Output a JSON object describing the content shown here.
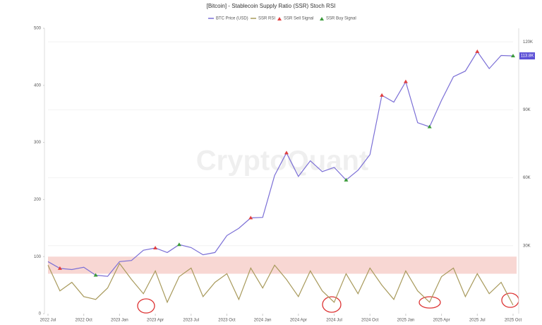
{
  "chart_data": {
    "type": "line",
    "title": "[Bitcoin] - Stablecoin Supply Ratio (SSR) Stoch RSI",
    "watermark": "CryptoQuant",
    "x": [
      "2022-07",
      "2022-08",
      "2022-09",
      "2022-10",
      "2022-11",
      "2022-12",
      "2023-01",
      "2023-02",
      "2023-03",
      "2023-04",
      "2023-05",
      "2023-06",
      "2023-07",
      "2023-08",
      "2023-09",
      "2023-10",
      "2023-11",
      "2023-12",
      "2024-01",
      "2024-02",
      "2024-03",
      "2024-04",
      "2024-05",
      "2024-06",
      "2024-07",
      "2024-08",
      "2024-09",
      "2024-10",
      "2024-11",
      "2024-12",
      "2025-01",
      "2025-02",
      "2025-03",
      "2025-04",
      "2025-05",
      "2025-06",
      "2025-07",
      "2025-08",
      "2025-09",
      "2025-10"
    ],
    "xlim": [
      "2022-07",
      "2025-10"
    ],
    "xticks": [
      {
        "value": "2022-07",
        "label": "2022 Jul"
      },
      {
        "value": "2022-10",
        "label": "2022 Oct"
      },
      {
        "value": "2023-01",
        "label": "2023 Jan"
      },
      {
        "value": "2023-04",
        "label": "2023 Apr"
      },
      {
        "value": "2023-07",
        "label": "2023 Jul"
      },
      {
        "value": "2023-10",
        "label": "2023 Oct"
      },
      {
        "value": "2024-01",
        "label": "2024 Jan"
      },
      {
        "value": "2024-04",
        "label": "2024 Apr"
      },
      {
        "value": "2024-07",
        "label": "2024 Jul"
      },
      {
        "value": "2024-10",
        "label": "2024 Oct"
      },
      {
        "value": "2025-01",
        "label": "2025 Jan"
      },
      {
        "value": "2025-04",
        "label": "2025 Apr"
      },
      {
        "value": "2025-07",
        "label": "2025 Jul"
      },
      {
        "value": "2025-10",
        "label": "2025 Oct"
      }
    ],
    "ylim": [
      0,
      500
    ],
    "yticks": [
      0,
      100,
      200,
      300,
      400,
      500
    ],
    "y2lim": [
      0,
      126000
    ],
    "y2ticks": [
      {
        "value": 30000,
        "label": "30K"
      },
      {
        "value": 60000,
        "label": "60K"
      },
      {
        "value": 90000,
        "label": "90K"
      },
      {
        "value": 120000,
        "label": "120K"
      }
    ],
    "band": [
      70,
      100
    ],
    "band_color": "#f8d7d3",
    "last_price": {
      "value": 113800,
      "label": "113.8K"
    },
    "series": [
      {
        "name": "BTC Price (USD)",
        "color": "#7b6fd6",
        "axis": "y2",
        "values": [
          23000,
          20000,
          19500,
          20500,
          17000,
          16500,
          23000,
          23500,
          28000,
          29000,
          27000,
          30500,
          29200,
          26000,
          27000,
          34500,
          37700,
          42300,
          42500,
          61000,
          71000,
          60600,
          67500,
          62700,
          64600,
          59000,
          63300,
          70200,
          96400,
          93400,
          102400,
          84300,
          82500,
          94200,
          104600,
          107100,
          115700,
          108200,
          114000,
          113800
        ]
      },
      {
        "name": "SSR RSI",
        "color": "#a89a5c",
        "values": [
          85,
          40,
          55,
          30,
          25,
          45,
          88,
          60,
          35,
          75,
          20,
          65,
          80,
          30,
          55,
          70,
          25,
          80,
          45,
          85,
          60,
          30,
          75,
          40,
          20,
          70,
          35,
          80,
          50,
          25,
          75,
          40,
          20,
          65,
          80,
          30,
          70,
          35,
          55,
          15
        ]
      },
      {
        "name": "SSR Sell Signal",
        "color": "#e04040",
        "type": "scatter",
        "axis": "y2",
        "x": [
          "2022-08",
          "2023-04",
          "2023-12",
          "2024-03",
          "2024-11",
          "2025-01",
          "2025-07"
        ],
        "values": [
          20000,
          29000,
          42300,
          71000,
          96400,
          102400,
          115700
        ]
      },
      {
        "name": "SSR Buy Signal",
        "color": "#3a9a3a",
        "type": "scatter",
        "axis": "y2",
        "x": [
          "2022-11",
          "2023-06",
          "2024-08",
          "2025-03",
          "2025-10"
        ],
        "values": [
          17000,
          30500,
          59000,
          82500,
          113800
        ]
      }
    ]
  }
}
